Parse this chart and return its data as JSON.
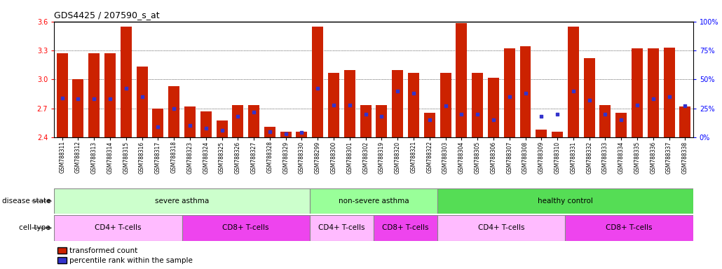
{
  "title": "GDS4425 / 207590_s_at",
  "samples": [
    "GSM788311",
    "GSM788312",
    "GSM788313",
    "GSM788314",
    "GSM788315",
    "GSM788316",
    "GSM788317",
    "GSM788318",
    "GSM788323",
    "GSM788324",
    "GSM788325",
    "GSM788326",
    "GSM788327",
    "GSM788328",
    "GSM788329",
    "GSM788330",
    "GSM788299",
    "GSM788300",
    "GSM788301",
    "GSM788302",
    "GSM788319",
    "GSM788320",
    "GSM788321",
    "GSM788322",
    "GSM788303",
    "GSM788304",
    "GSM788305",
    "GSM788306",
    "GSM788307",
    "GSM788308",
    "GSM788309",
    "GSM788310",
    "GSM788331",
    "GSM788332",
    "GSM788333",
    "GSM788334",
    "GSM788335",
    "GSM788336",
    "GSM788337",
    "GSM788338"
  ],
  "transformed_count": [
    3.27,
    3.0,
    3.27,
    3.27,
    3.55,
    3.13,
    2.7,
    2.93,
    2.72,
    2.67,
    2.57,
    2.73,
    2.73,
    2.51,
    2.46,
    2.46,
    3.55,
    3.07,
    3.1,
    2.73,
    2.73,
    3.1,
    3.07,
    2.65,
    3.07,
    3.58,
    3.07,
    3.02,
    3.32,
    3.34,
    2.48,
    2.46,
    3.55,
    3.22,
    2.73,
    2.65,
    3.32,
    3.32,
    3.33,
    2.72
  ],
  "percentile_rank": [
    34,
    33,
    33,
    33,
    42,
    35,
    9,
    25,
    10,
    8,
    6,
    18,
    22,
    5,
    3,
    4,
    42,
    28,
    28,
    20,
    18,
    40,
    38,
    15,
    27,
    20,
    20,
    15,
    35,
    38,
    18,
    20,
    40,
    32,
    20,
    15,
    28,
    33,
    35,
    27
  ],
  "bar_color": "#cc2200",
  "dot_color": "#3333cc",
  "ylim_left": [
    2.4,
    3.6
  ],
  "ylim_right": [
    0,
    100
  ],
  "yticks_left": [
    2.4,
    2.7,
    3.0,
    3.3,
    3.6
  ],
  "yticks_right": [
    0,
    25,
    50,
    75,
    100
  ],
  "disease_state_groups": [
    {
      "label": "severe asthma",
      "start": 0,
      "end": 16,
      "color": "#ccffcc"
    },
    {
      "label": "non-severe asthma",
      "start": 16,
      "end": 24,
      "color": "#99ff99"
    },
    {
      "label": "healthy control",
      "start": 24,
      "end": 40,
      "color": "#55dd55"
    }
  ],
  "cell_type_groups": [
    {
      "label": "CD4+ T-cells",
      "start": 0,
      "end": 8,
      "color": "#ffbbff"
    },
    {
      "label": "CD8+ T-cells",
      "start": 8,
      "end": 16,
      "color": "#ee44ee"
    },
    {
      "label": "CD4+ T-cells",
      "start": 16,
      "end": 20,
      "color": "#ffbbff"
    },
    {
      "label": "CD8+ T-cells",
      "start": 20,
      "end": 24,
      "color": "#ee44ee"
    },
    {
      "label": "CD4+ T-cells",
      "start": 24,
      "end": 32,
      "color": "#ffbbff"
    },
    {
      "label": "CD8+ T-cells",
      "start": 32,
      "end": 40,
      "color": "#ee44ee"
    }
  ],
  "legend_bar_label": "transformed count",
  "legend_dot_label": "percentile rank within the sample",
  "disease_state_label": "disease state",
  "cell_type_label": "cell type"
}
